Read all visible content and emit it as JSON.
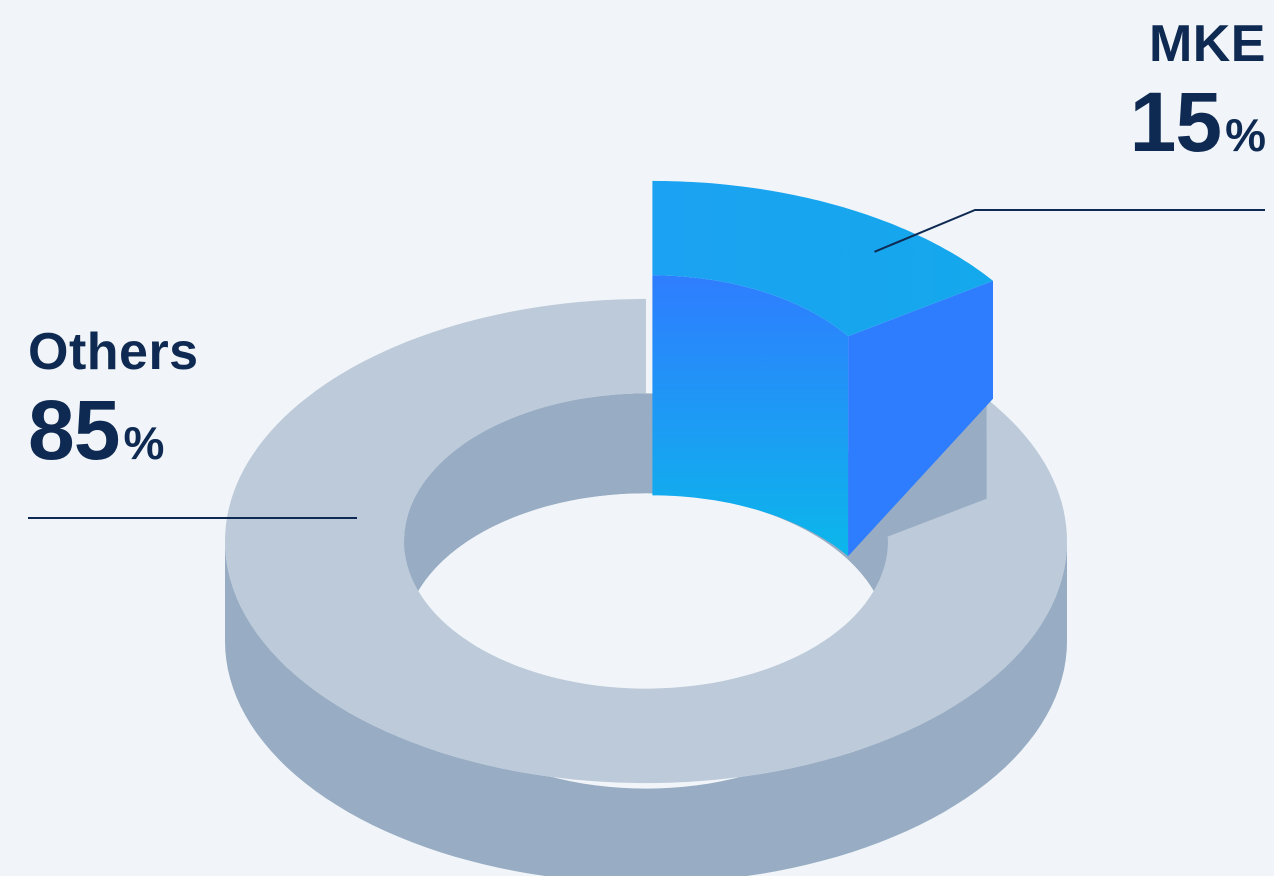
{
  "chart_data": {
    "type": "pie",
    "style": "3d-donut",
    "slices": [
      {
        "label": "Others",
        "value": 85,
        "value_text": "85",
        "unit": "%",
        "color": "#bdcad9"
      },
      {
        "label": "MKE",
        "value": 15,
        "value_text": "15",
        "unit": "%",
        "color": "#2f80ff"
      }
    ],
    "colors": {
      "others_top": "#bdcad9",
      "others_side": "#98adc4",
      "mke_top": "#1aa3ef",
      "mke_side_top": "#2f7dff",
      "mke_side_bottom": "#0bb7ea",
      "leader_line": "#0f2a52",
      "text": "#0f2a52",
      "background": "#f1f5f9"
    }
  }
}
